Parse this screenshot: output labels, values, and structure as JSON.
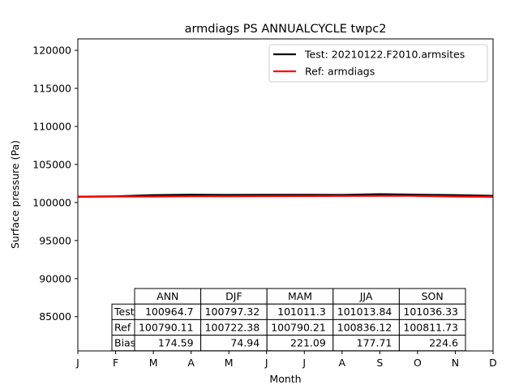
{
  "chart_data": {
    "type": "line",
    "title": "armdiags PS ANNUALCYCLE twpc2",
    "xlabel": "Month",
    "ylabel": "Surface pressure (Pa)",
    "categories": [
      "J",
      "F",
      "M",
      "A",
      "M",
      "J",
      "J",
      "A",
      "S",
      "O",
      "N",
      "D"
    ],
    "ylim": [
      80500,
      121500
    ],
    "yticks": [
      85000,
      90000,
      95000,
      100000,
      105000,
      110000,
      115000,
      120000
    ],
    "grid": false,
    "legend_position": "upper right",
    "series": [
      {
        "name": "Test: 20210122.F2010.armsites",
        "color": "#000000",
        "values": [
          100760,
          100820,
          100980,
          101030,
          101000,
          101010,
          101020,
          101000,
          101100,
          101030,
          100980,
          100880
        ]
      },
      {
        "name": "Ref: armdiags",
        "color": "#ff0000",
        "values": [
          100740,
          100790,
          100790,
          100820,
          100830,
          100840,
          100850,
          100860,
          100880,
          100870,
          100790,
          100750
        ]
      }
    ],
    "table": {
      "columns": [
        "ANN",
        "DJF",
        "MAM",
        "JJA",
        "SON"
      ],
      "rows": [
        {
          "label": "Test",
          "values": [
            "100964.7",
            "100797.32",
            "101011.3",
            "101013.84",
            "101036.33"
          ]
        },
        {
          "label": "Ref",
          "values": [
            "100790.11",
            "100722.38",
            "100790.21",
            "100836.12",
            "100811.73"
          ]
        },
        {
          "label": "Bias",
          "values": [
            "174.59",
            "74.94",
            "221.09",
            "177.71",
            "224.6"
          ]
        }
      ]
    }
  }
}
